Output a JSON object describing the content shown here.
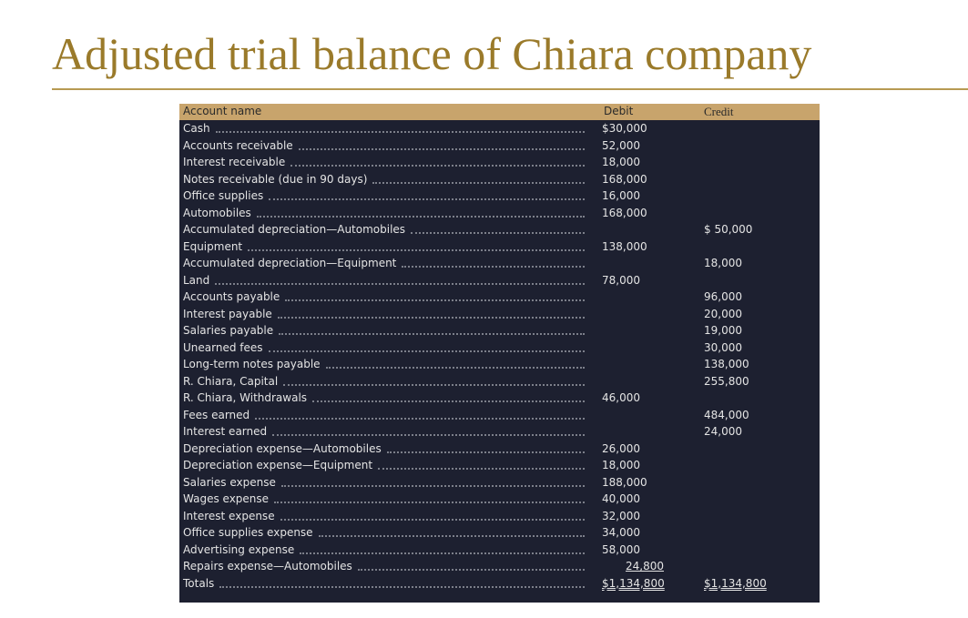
{
  "title": "Adjusted trial balance of Chiara company",
  "table": {
    "header": [
      "Account name",
      "Debit",
      "Credit"
    ],
    "rows": [
      [
        "Cash",
        "$30,000",
        null
      ],
      [
        "Accounts receivable",
        "52,000",
        null
      ],
      [
        "Interest receivable",
        "18,000",
        null
      ],
      [
        "Notes receivable (due in 90 days)",
        "168,000",
        null
      ],
      [
        "Office supplies",
        "16,000",
        null
      ],
      [
        "Automobiles",
        "168,000",
        null
      ],
      [
        "Accumulated depreciation—Automobiles",
        null,
        "$ 50,000"
      ],
      [
        "Equipment",
        "138,000",
        null
      ],
      [
        "Accumulated depreciation—Equipment",
        null,
        "18,000"
      ],
      [
        "Land",
        "78,000",
        null
      ],
      [
        "Accounts payable",
        null,
        "96,000"
      ],
      [
        "Interest payable",
        null,
        "20,000"
      ],
      [
        "Salaries payable",
        null,
        "19,000"
      ],
      [
        "Unearned fees",
        null,
        "30,000"
      ],
      [
        "Long-term notes payable",
        null,
        "138,000"
      ],
      [
        "R. Chiara, Capital",
        null,
        "255,800"
      ],
      [
        "R. Chiara, Withdrawals",
        "46,000",
        null
      ],
      [
        "Fees earned",
        null,
        "484,000"
      ],
      [
        "Interest earned",
        null,
        "24,000"
      ],
      [
        "Depreciation expense—Automobiles",
        "26,000",
        null
      ],
      [
        "Depreciation expense—Equipment",
        "18,000",
        null
      ],
      [
        "Salaries expense",
        "188,000",
        null
      ],
      [
        "Wages expense",
        "40,000",
        null
      ],
      [
        "Interest expense",
        "32,000",
        null
      ],
      [
        "Office supplies expense",
        "34,000",
        null
      ],
      [
        "Advertising expense",
        "58,000",
        null
      ],
      [
        "Repairs expense—Automobiles",
        "24,800",
        null
      ],
      [
        "Totals",
        "$1,134,800",
        "$1,134,800"
      ]
    ]
  }
}
